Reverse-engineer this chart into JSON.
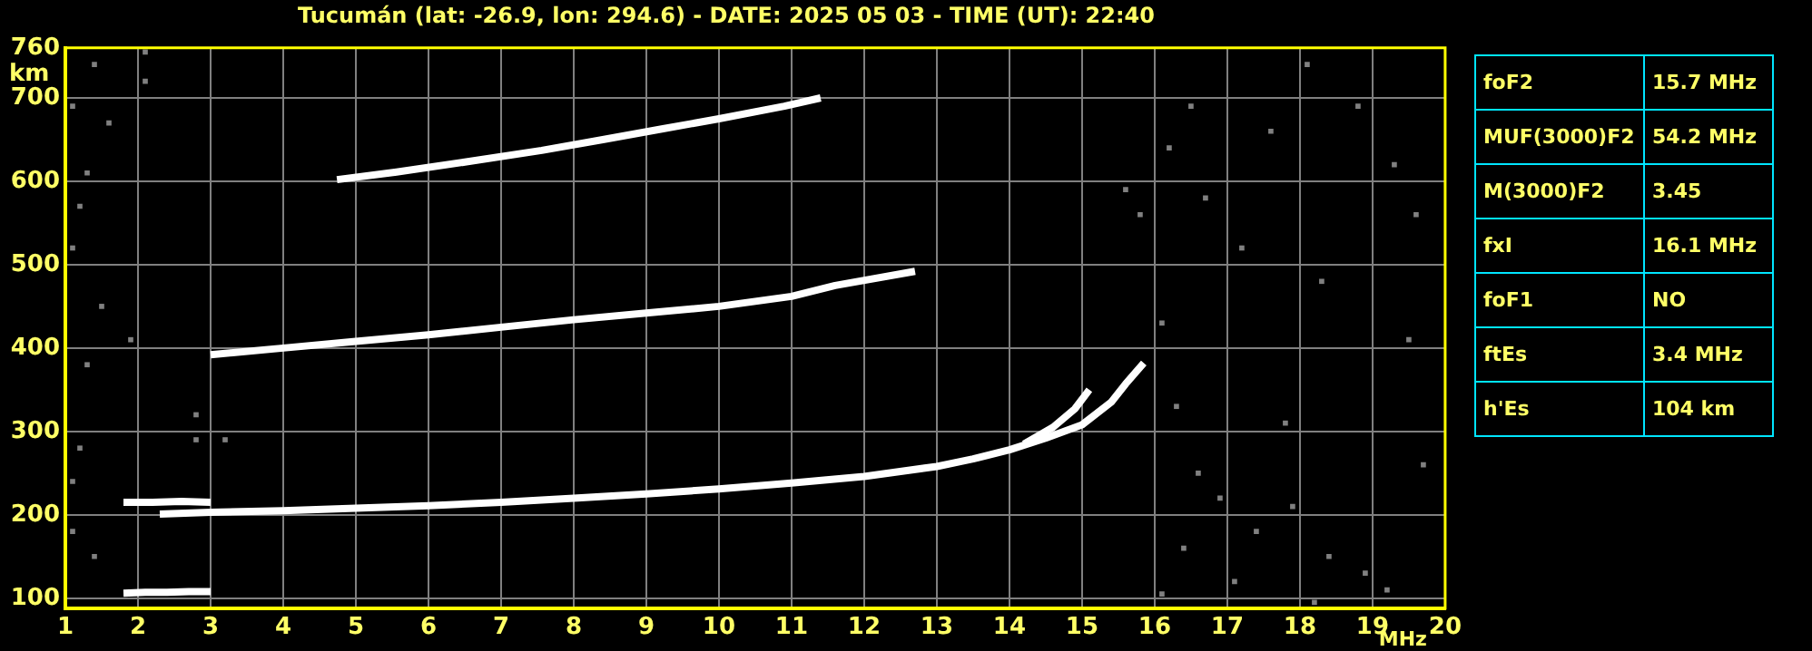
{
  "chart_data": [
    {
      "type": "scatter",
      "title": "Tucumán (lat: -26.9, lon: 294.6) - DATE: 2025 05 03 - TIME (UT): 22:40",
      "xlabel": "MHz",
      "ylabel": "km",
      "xlim": [
        1,
        20
      ],
      "xticks": [
        1,
        2,
        3,
        4,
        5,
        6,
        7,
        8,
        9,
        10,
        11,
        12,
        13,
        14,
        15,
        16,
        17,
        18,
        19,
        20
      ],
      "ylim": [
        88,
        760
      ],
      "yticks": [
        100,
        200,
        300,
        400,
        500,
        600,
        700,
        760
      ],
      "grid": true,
      "legend": false,
      "marker": "square",
      "series": [
        {
          "type": "line",
          "marker": "none",
          "color": "#ffffff",
          "x": [
            1.8,
            2.1,
            2.4,
            2.7,
            3.0
          ],
          "values": [
            106,
            107,
            107,
            108,
            108
          ]
        },
        {
          "type": "line",
          "marker": "none",
          "color": "#ffffff",
          "x": [
            1.8,
            2.2,
            2.6,
            3.0
          ],
          "values": [
            215,
            215,
            216,
            215
          ]
        },
        {
          "type": "line",
          "marker": "none",
          "color": "#ffffff",
          "x": [
            2.3,
            3,
            4,
            5,
            6,
            7,
            8,
            9,
            10,
            11,
            12,
            13,
            13.5,
            14,
            14.5,
            15,
            15.4,
            15.6,
            15.85
          ],
          "values": [
            201,
            203,
            205,
            208,
            211,
            215,
            220,
            225,
            231,
            238,
            246,
            258,
            267,
            278,
            292,
            308,
            335,
            357,
            382
          ]
        },
        {
          "type": "line",
          "marker": "none",
          "color": "#ffffff",
          "x": [
            14.2,
            14.6,
            14.9,
            15.1
          ],
          "values": [
            285,
            305,
            327,
            350
          ]
        },
        {
          "type": "line",
          "marker": "none",
          "color": "#ffffff",
          "x": [
            3,
            4,
            5,
            6,
            7,
            8,
            9,
            10,
            11,
            11.6,
            12.7
          ],
          "values": [
            392,
            400,
            408,
            416,
            425,
            434,
            442,
            450,
            462,
            475,
            492
          ]
        },
        {
          "type": "line",
          "marker": "none",
          "color": "#ffffff",
          "x": [
            4.74,
            5.56,
            6.5,
            7.56,
            8.4,
            9.23,
            10,
            10.9,
            11.4
          ],
          "values": [
            602,
            611,
            623,
            637,
            650,
            663,
            675,
            690,
            700
          ]
        },
        {
          "type": "scatter",
          "color": "#808080",
          "x": [
            1.1,
            1.4,
            1.6,
            2.1,
            2.1,
            1.3,
            1.2,
            1.1,
            1.5,
            1.9,
            1.3,
            1.2,
            1.1,
            1.1,
            1.4,
            2.8,
            2.8,
            3.2,
            15.6,
            15.8,
            16.2,
            16.5,
            16.7,
            17.2,
            17.6,
            18.1,
            18.3,
            18.8,
            19.3,
            19.6,
            16.1,
            16.3,
            16.6,
            16.9,
            17.4,
            17.9,
            18.4,
            18.9,
            19.2,
            19.7,
            17.1,
            16.1,
            18.2,
            19.5,
            17.8,
            16.4
          ],
          "values": [
            690,
            740,
            670,
            755,
            720,
            610,
            570,
            520,
            450,
            410,
            380,
            280,
            240,
            180,
            150,
            320,
            290,
            290,
            590,
            560,
            640,
            690,
            580,
            520,
            660,
            740,
            480,
            690,
            620,
            560,
            430,
            330,
            250,
            220,
            180,
            210,
            150,
            130,
            110,
            260,
            120,
            105,
            95,
            410,
            310,
            160
          ]
        }
      ]
    },
    {
      "type": "other",
      "annotations": [
        "foF2",
        "15.7 MHz",
        "MUF(3000)F2",
        "54.2 MHz",
        "M(3000)F2",
        "3.45",
        "fxI",
        "16.1 MHz",
        "foF1",
        "NO",
        "ftEs",
        "3.4 MHz",
        "h'Es",
        "104 km"
      ]
    }
  ]
}
